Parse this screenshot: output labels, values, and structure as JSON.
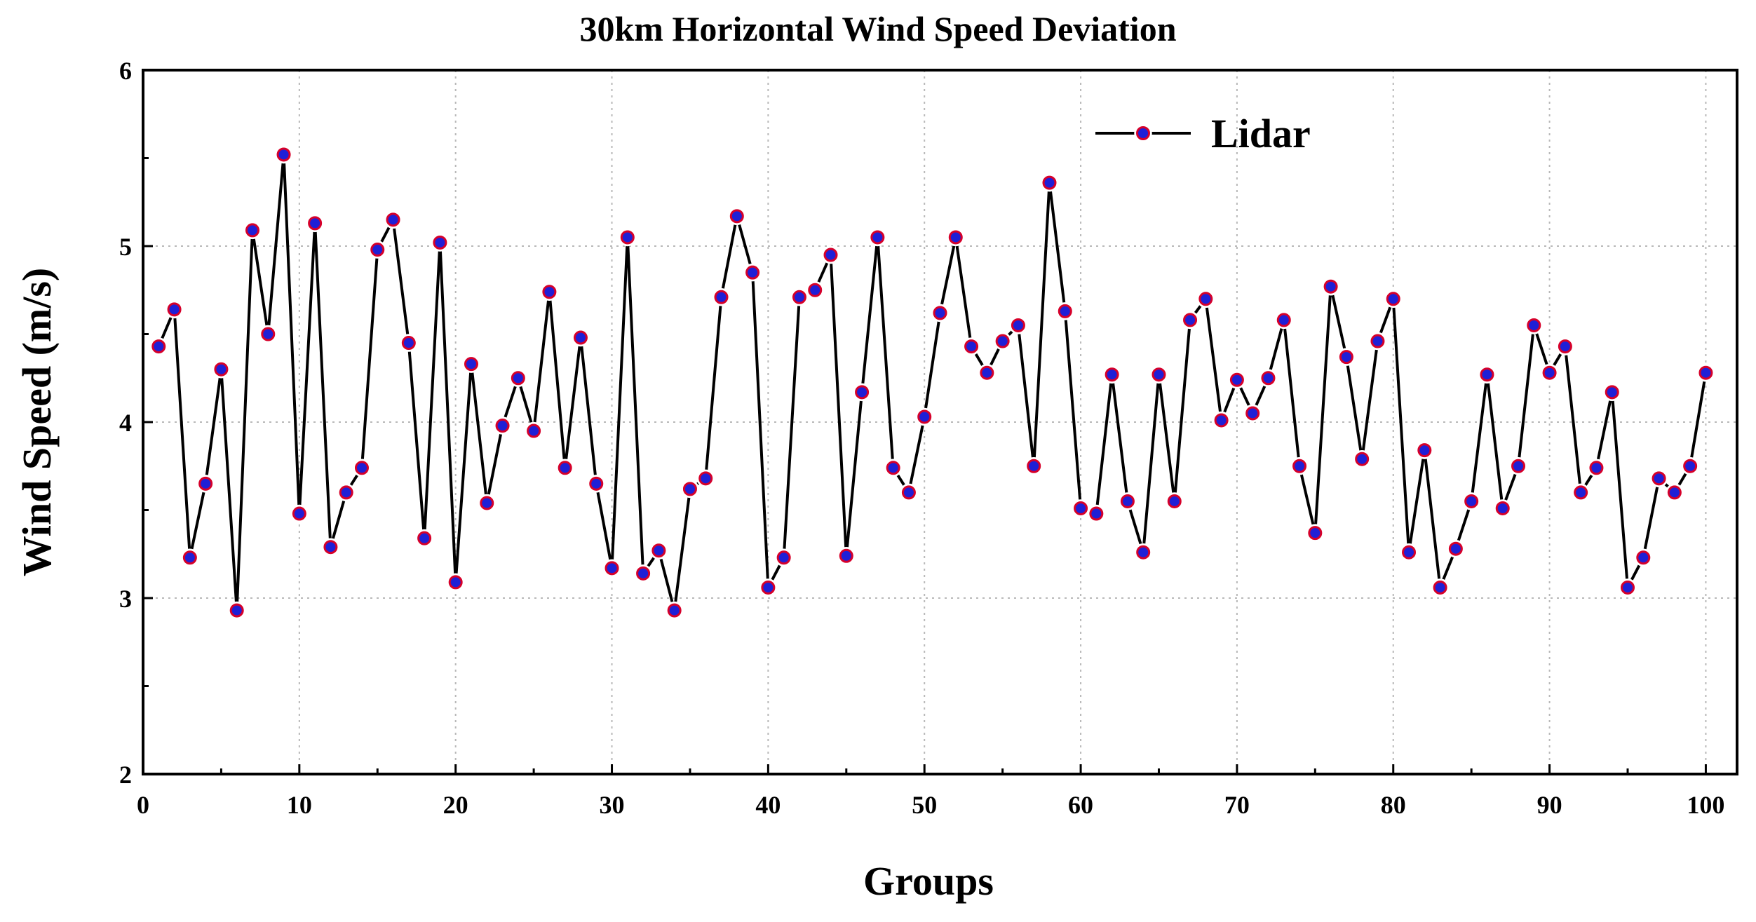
{
  "chart_data": {
    "type": "line",
    "title": "30km Horizontal Wind Speed Deviation",
    "xlabel": "Groups",
    "ylabel": "Wind Speed (m/s)",
    "xlim": [
      0,
      102
    ],
    "ylim": [
      2,
      6
    ],
    "xticks": [
      0,
      10,
      20,
      30,
      40,
      50,
      60,
      70,
      80,
      90,
      100
    ],
    "yticks": [
      2,
      3,
      4,
      5,
      6
    ],
    "xtick_labels": [
      "0",
      "10",
      "20",
      "30",
      "40",
      "50",
      "60",
      "70",
      "80",
      "90",
      "100"
    ],
    "ytick_labels": [
      "2",
      "3",
      "4",
      "5",
      "6"
    ],
    "grid": true,
    "legend": {
      "position": "top-right",
      "entries": [
        "Lidar"
      ]
    },
    "colors": {
      "line": "#000000",
      "marker_fill": "#1f1fd6",
      "marker_ring": "#d6002a",
      "marker_edge": "#ffffff"
    },
    "series": [
      {
        "name": "Lidar",
        "x": [
          1,
          2,
          3,
          4,
          5,
          6,
          7,
          8,
          9,
          10,
          11,
          12,
          13,
          14,
          15,
          16,
          17,
          18,
          19,
          20,
          21,
          22,
          23,
          24,
          25,
          26,
          27,
          28,
          29,
          30,
          31,
          32,
          33,
          34,
          35,
          36,
          37,
          38,
          39,
          40,
          41,
          42,
          43,
          44,
          45,
          46,
          47,
          48,
          49,
          50,
          51,
          52,
          53,
          54,
          55,
          56,
          57,
          58,
          59,
          60,
          61,
          62,
          63,
          64,
          65,
          66,
          67,
          68,
          69,
          70,
          71,
          72,
          73,
          74,
          75,
          76,
          77,
          78,
          79,
          80,
          81,
          82,
          83,
          84,
          85,
          86,
          87,
          88,
          89,
          90,
          91,
          92,
          93,
          94,
          95,
          96,
          97,
          98,
          99,
          100
        ],
        "values": [
          4.43,
          4.64,
          3.23,
          3.65,
          4.3,
          2.93,
          5.09,
          4.5,
          5.52,
          3.48,
          5.13,
          3.29,
          3.6,
          3.74,
          4.98,
          5.15,
          4.45,
          3.34,
          5.02,
          3.09,
          4.33,
          3.54,
          3.98,
          4.25,
          3.95,
          4.74,
          3.74,
          4.48,
          3.65,
          3.17,
          5.05,
          3.14,
          3.27,
          2.93,
          3.62,
          3.68,
          4.71,
          5.17,
          4.85,
          3.06,
          3.23,
          4.71,
          4.75,
          4.95,
          3.24,
          4.17,
          5.05,
          3.74,
          3.6,
          4.03,
          4.62,
          5.05,
          4.43,
          4.28,
          4.46,
          4.55,
          3.75,
          5.36,
          4.63,
          3.51,
          3.48,
          4.27,
          3.55,
          3.26,
          4.27,
          3.55,
          4.58,
          4.7,
          4.01,
          4.24,
          4.05,
          4.25,
          4.58,
          3.75,
          3.37,
          4.77,
          4.37,
          3.79,
          4.46,
          4.7,
          3.26,
          3.84,
          3.06,
          3.28,
          3.55,
          4.27,
          3.51,
          3.75,
          4.55,
          4.28,
          4.43,
          3.6,
          3.74,
          4.17,
          3.06,
          3.23,
          3.68,
          3.6,
          3.75,
          4.28
        ]
      }
    ]
  }
}
